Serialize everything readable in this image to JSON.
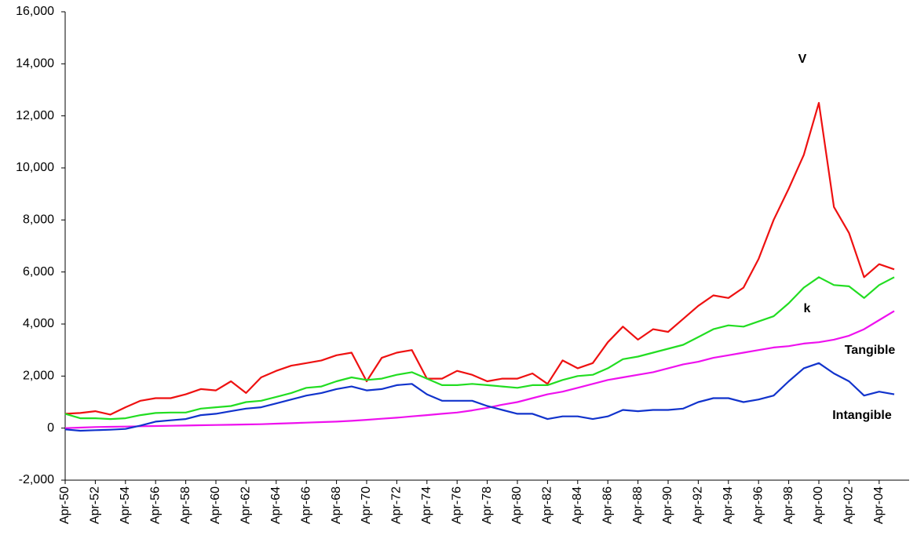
{
  "chart_data": {
    "type": "line",
    "categories": [
      "Apr-50",
      null,
      "Apr-52",
      null,
      "Apr-54",
      null,
      "Apr-56",
      null,
      "Apr-58",
      null,
      "Apr-60",
      null,
      "Apr-62",
      null,
      "Apr-64",
      null,
      "Apr-66",
      null,
      "Apr-68",
      null,
      "Apr-70",
      null,
      "Apr-72",
      null,
      "Apr-74",
      null,
      "Apr-76",
      null,
      "Apr-78",
      null,
      "Apr-80",
      null,
      "Apr-82",
      null,
      "Apr-84",
      null,
      "Apr-86",
      null,
      "Apr-88",
      null,
      "Apr-90",
      null,
      "Apr-92",
      null,
      "Apr-94",
      null,
      "Apr-96",
      null,
      "Apr-98",
      null,
      "Apr-00",
      null,
      "Apr-02",
      null,
      "Apr-04",
      null
    ],
    "series": [
      {
        "name": "V",
        "color": "#ee1111",
        "values": [
          550,
          580,
          650,
          520,
          800,
          1050,
          1150,
          1150,
          1300,
          1500,
          1450,
          1800,
          1350,
          1950,
          2200,
          2400,
          2500,
          2600,
          2800,
          2900,
          1800,
          2700,
          2900,
          3000,
          1900,
          1900,
          2200,
          2050,
          1800,
          1900,
          1900,
          2100,
          1700,
          2600,
          2300,
          2500,
          3300,
          3900,
          3400,
          3800,
          3700,
          4200,
          4700,
          5100,
          5000,
          5400,
          6500,
          8000,
          9200,
          10500,
          12500,
          8500,
          7500,
          5800,
          6300,
          6100
        ]
      },
      {
        "name": "k",
        "color": "#22dd22",
        "values": [
          550,
          380,
          380,
          350,
          380,
          500,
          580,
          600,
          600,
          750,
          800,
          850,
          1000,
          1050,
          1200,
          1350,
          1550,
          1600,
          1800,
          1950,
          1850,
          1900,
          2050,
          2150,
          1900,
          1650,
          1650,
          1700,
          1650,
          1600,
          1550,
          1650,
          1650,
          1850,
          2000,
          2050,
          2300,
          2650,
          2750,
          2900,
          3050,
          3200,
          3500,
          3800,
          3950,
          3900,
          4100,
          4300,
          4800,
          5400,
          5800,
          5500,
          5450,
          5000,
          5500,
          5800
        ]
      },
      {
        "name": "Tangible",
        "color": "#ee11ee",
        "values": [
          0,
          20,
          40,
          50,
          60,
          70,
          80,
          90,
          100,
          110,
          120,
          130,
          140,
          150,
          170,
          190,
          210,
          230,
          250,
          280,
          320,
          360,
          400,
          450,
          500,
          550,
          600,
          680,
          780,
          900,
          1000,
          1150,
          1300,
          1400,
          1550,
          1700,
          1850,
          1950,
          2050,
          2150,
          2300,
          2450,
          2550,
          2700,
          2800,
          2900,
          3000,
          3100,
          3150,
          3250,
          3300,
          3400,
          3550,
          3800,
          4150,
          4500
        ]
      },
      {
        "name": "Intangible",
        "color": "#1133cc",
        "values": [
          -50,
          -100,
          -80,
          -60,
          -30,
          100,
          250,
          300,
          350,
          500,
          550,
          650,
          750,
          800,
          950,
          1100,
          1250,
          1350,
          1500,
          1600,
          1450,
          1500,
          1650,
          1700,
          1300,
          1050,
          1050,
          1050,
          850,
          700,
          550,
          550,
          350,
          450,
          450,
          350,
          450,
          700,
          650,
          700,
          700,
          750,
          1000,
          1150,
          1150,
          1000,
          1100,
          1250,
          1800,
          2300,
          2500,
          2100,
          1800,
          1250,
          1400,
          1300
        ]
      }
    ],
    "ylim": [
      -2000,
      16000
    ],
    "yticks": [
      {
        "value": -2000,
        "label": "-2,000"
      },
      0,
      {
        "value": 2000,
        "label": "2,000"
      },
      {
        "value": 4000,
        "label": "4,000"
      },
      {
        "value": 6000,
        "label": "6,000"
      },
      {
        "value": 8000,
        "label": "8,000"
      },
      {
        "value": 10000,
        "label": "10,000"
      },
      {
        "value": 12000,
        "label": "12,000"
      },
      {
        "value": 14000,
        "label": "14,000"
      },
      {
        "value": 16000,
        "label": "16,000"
      }
    ],
    "grid": false
  }
}
